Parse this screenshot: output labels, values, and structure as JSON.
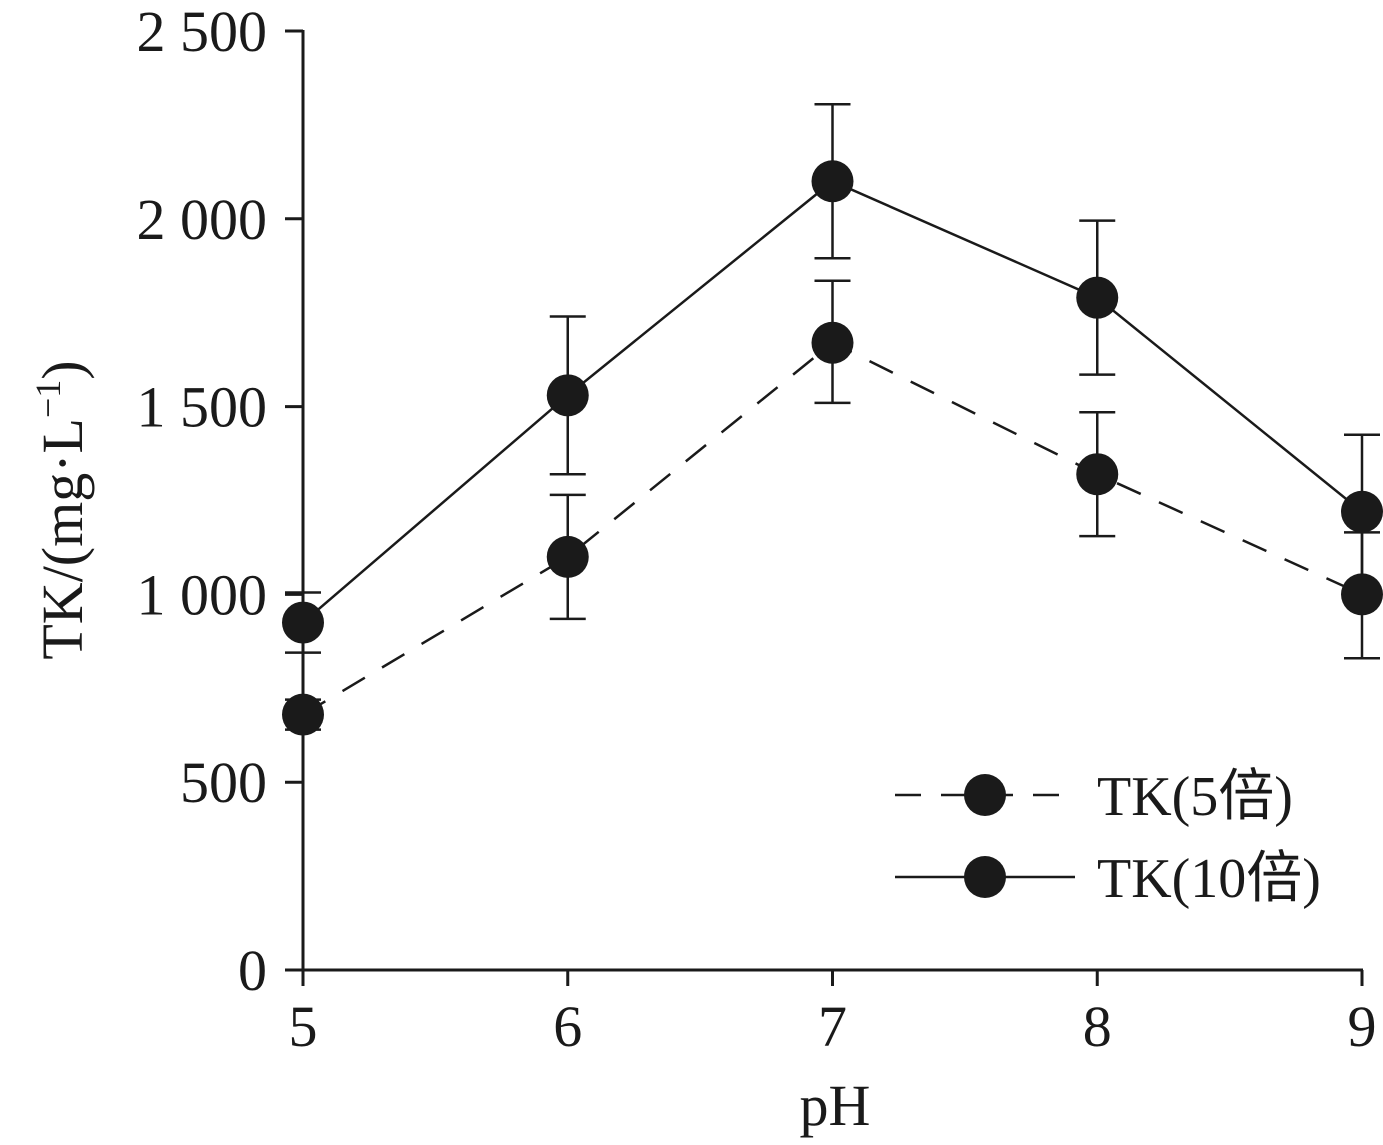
{
  "chart_data": {
    "type": "line",
    "xlabel": "pH",
    "ylabel": {
      "main": "TK/(mg·L",
      "sup": "−1",
      "close": ")"
    },
    "x": [
      5,
      6,
      7,
      8,
      9
    ],
    "xlim": [
      5,
      9
    ],
    "ylim": [
      0,
      2500
    ],
    "yticks": [
      0,
      500,
      1000,
      1500,
      2000,
      2500
    ],
    "ytick_labels": [
      "0",
      "500",
      "1 000",
      "1 500",
      "2 000",
      "2 500"
    ],
    "xtick_labels": [
      "5",
      "6",
      "7",
      "8",
      "9"
    ],
    "grid": false,
    "legend_position": "bottom-right",
    "series": [
      {
        "name": "TK(5倍)",
        "line_style": "dashed",
        "values": [
          680,
          1100,
          1670,
          1320,
          1000
        ],
        "errors": [
          [
            40,
            40
          ],
          [
            165,
            165
          ],
          [
            160,
            165
          ],
          [
            165,
            165
          ],
          [
            170,
            165
          ]
        ]
      },
      {
        "name": "TK(10倍)",
        "line_style": "solid",
        "values": [
          925,
          1530,
          2100,
          1790,
          1220
        ],
        "errors": [
          [
            80,
            80
          ],
          [
            210,
            210
          ],
          [
            205,
            205
          ],
          [
            205,
            205
          ],
          [
            205,
            205
          ]
        ]
      }
    ],
    "colors": {
      "line": "#1a1a1a",
      "marker": "#1a1a1a"
    }
  }
}
